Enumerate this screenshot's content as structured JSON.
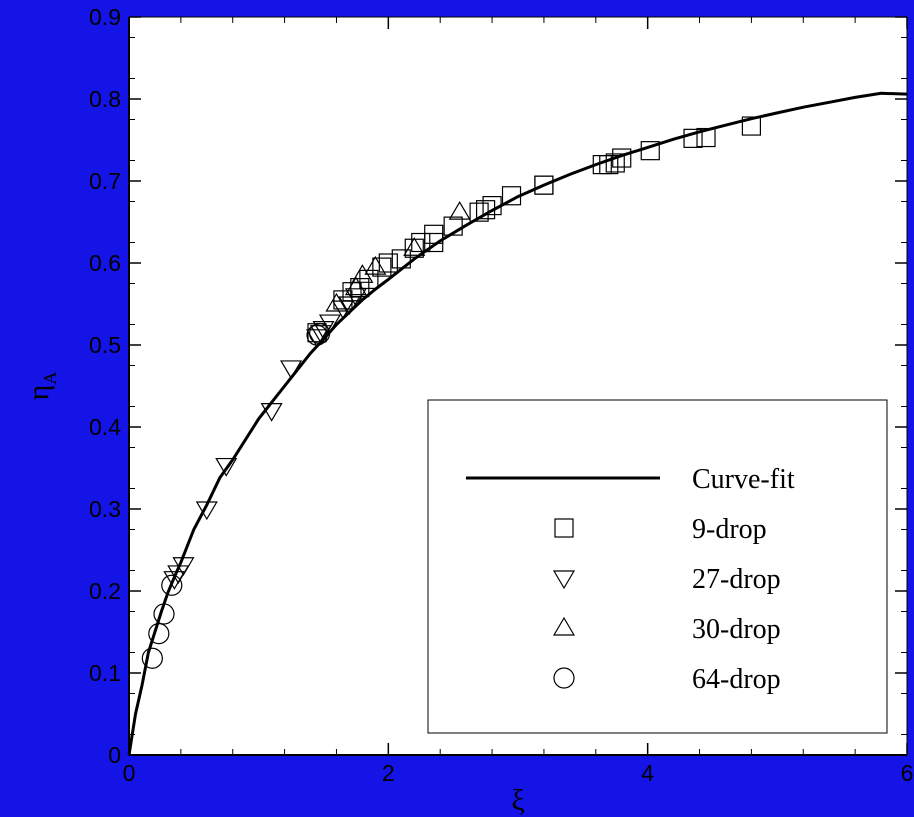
{
  "chart_data": {
    "type": "scatter",
    "xlabel": "ξ",
    "ylabel": "η",
    "ylabel_sub": "A",
    "xlim": [
      0,
      6
    ],
    "ylim": [
      0,
      0.9
    ],
    "x_ticks": [
      0,
      2,
      4,
      6
    ],
    "x_tick_labels": [
      "0",
      "2",
      "4",
      "6"
    ],
    "y_ticks": [
      0,
      0.1,
      0.2,
      0.3,
      0.4,
      0.5,
      0.6,
      0.7,
      0.8,
      0.9
    ],
    "y_tick_labels": [
      "0",
      "0.1",
      "0.2",
      "0.3",
      "0.4",
      "0.5",
      "0.6",
      "0.7",
      "0.8",
      "0.9"
    ],
    "grid": false,
    "legend_position": "bottom-right",
    "background_color": "#1414e6",
    "plot_background": "#ffffff",
    "curve": {
      "name": "Curve-fit",
      "x": [
        0,
        0.02,
        0.05,
        0.1,
        0.15,
        0.2,
        0.25,
        0.3,
        0.35,
        0.4,
        0.5,
        0.6,
        0.7,
        0.8,
        0.9,
        1.0,
        1.1,
        1.2,
        1.3,
        1.4,
        1.5,
        1.6,
        1.7,
        1.8,
        1.9,
        2.0,
        2.2,
        2.4,
        2.6,
        2.8,
        3.0,
        3.2,
        3.4,
        3.6,
        3.8,
        4.0,
        4.2,
        4.4,
        4.6,
        4.8,
        5.0,
        5.2,
        5.4,
        5.6,
        5.8,
        6.0
      ],
      "y": [
        0,
        0.02,
        0.05,
        0.085,
        0.125,
        0.15,
        0.175,
        0.198,
        0.217,
        0.235,
        0.275,
        0.305,
        0.338,
        0.36,
        0.385,
        0.41,
        0.43,
        0.45,
        0.47,
        0.49,
        0.507,
        0.525,
        0.54,
        0.555,
        0.568,
        0.58,
        0.605,
        0.627,
        0.646,
        0.664,
        0.681,
        0.695,
        0.708,
        0.72,
        0.731,
        0.741,
        0.751,
        0.76,
        0.768,
        0.776,
        0.783,
        0.79,
        0.796,
        0.802,
        0.807,
        0.806
      ]
    },
    "series": [
      {
        "name": "9-drop",
        "marker": "square",
        "points": [
          [
            1.45,
            0.515
          ],
          [
            1.65,
            0.555
          ],
          [
            1.72,
            0.565
          ],
          [
            1.78,
            0.57
          ],
          [
            1.85,
            0.58
          ],
          [
            1.95,
            0.595
          ],
          [
            2.0,
            0.6
          ],
          [
            2.1,
            0.605
          ],
          [
            2.2,
            0.618
          ],
          [
            2.25,
            0.625
          ],
          [
            2.35,
            0.625
          ],
          [
            2.35,
            0.635
          ],
          [
            2.5,
            0.645
          ],
          [
            2.7,
            0.662
          ],
          [
            2.75,
            0.665
          ],
          [
            2.8,
            0.67
          ],
          [
            2.95,
            0.682
          ],
          [
            3.2,
            0.695
          ],
          [
            3.2,
            0.695
          ],
          [
            3.65,
            0.72
          ],
          [
            3.7,
            0.72
          ],
          [
            3.75,
            0.722
          ],
          [
            3.8,
            0.728
          ],
          [
            4.02,
            0.737
          ],
          [
            4.35,
            0.752
          ],
          [
            4.45,
            0.753
          ],
          [
            4.8,
            0.767
          ]
        ]
      },
      {
        "name": "27-drop",
        "marker": "triangle-down",
        "points": [
          [
            0.35,
            0.215
          ],
          [
            0.38,
            0.222
          ],
          [
            0.42,
            0.232
          ],
          [
            0.6,
            0.3
          ],
          [
            0.75,
            0.353
          ],
          [
            1.1,
            0.42
          ],
          [
            1.25,
            0.472
          ],
          [
            1.45,
            0.51
          ],
          [
            1.48,
            0.515
          ],
          [
            1.5,
            0.52
          ],
          [
            1.55,
            0.528
          ],
          [
            1.65,
            0.545
          ],
          [
            1.7,
            0.55
          ],
          [
            1.75,
            0.56
          ]
        ]
      },
      {
        "name": "30-drop",
        "marker": "triangle-up",
        "points": [
          [
            1.6,
            0.55
          ],
          [
            1.75,
            0.57
          ],
          [
            1.8,
            0.585
          ],
          [
            1.9,
            0.595
          ],
          [
            2.2,
            0.618
          ],
          [
            2.55,
            0.662
          ]
        ]
      },
      {
        "name": "64-drop",
        "marker": "circle",
        "points": [
          [
            0.18,
            0.118
          ],
          [
            0.23,
            0.148
          ],
          [
            0.27,
            0.172
          ],
          [
            0.33,
            0.207
          ],
          [
            1.45,
            0.512
          ],
          [
            1.47,
            0.514
          ]
        ]
      }
    ]
  }
}
